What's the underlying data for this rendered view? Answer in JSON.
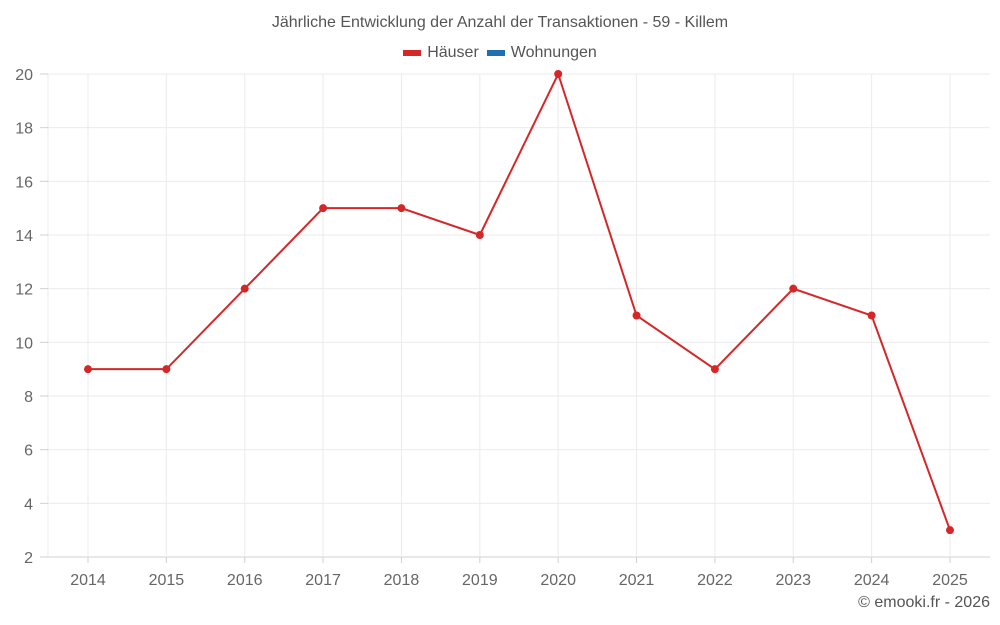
{
  "title": "Jährliche Entwicklung der Anzahl der Transaktionen - 59 - Killem",
  "legend": [
    {
      "label": "Häuser",
      "color": "#d62728"
    },
    {
      "label": "Wohnungen",
      "color": "#1f6fb0"
    }
  ],
  "credit": "© emooki.fr - 2026",
  "chart_data": {
    "type": "line",
    "title": "Jährliche Entwicklung der Anzahl der Transaktionen - 59 - Killem",
    "xlabel": "",
    "ylabel": "",
    "categories": [
      "2014",
      "2015",
      "2016",
      "2017",
      "2018",
      "2019",
      "2020",
      "2021",
      "2022",
      "2023",
      "2024",
      "2025"
    ],
    "series": [
      {
        "name": "Häuser",
        "color": "#d62728",
        "values": [
          9,
          9,
          12,
          15,
          15,
          14,
          20,
          11,
          9,
          12,
          11,
          3
        ]
      },
      {
        "name": "Wohnungen",
        "color": "#1f6fb0",
        "values": []
      }
    ],
    "ylim": [
      2,
      20
    ],
    "yticks": [
      2,
      4,
      6,
      8,
      10,
      12,
      14,
      16,
      18,
      20
    ],
    "grid": true,
    "legend_position": "top"
  }
}
